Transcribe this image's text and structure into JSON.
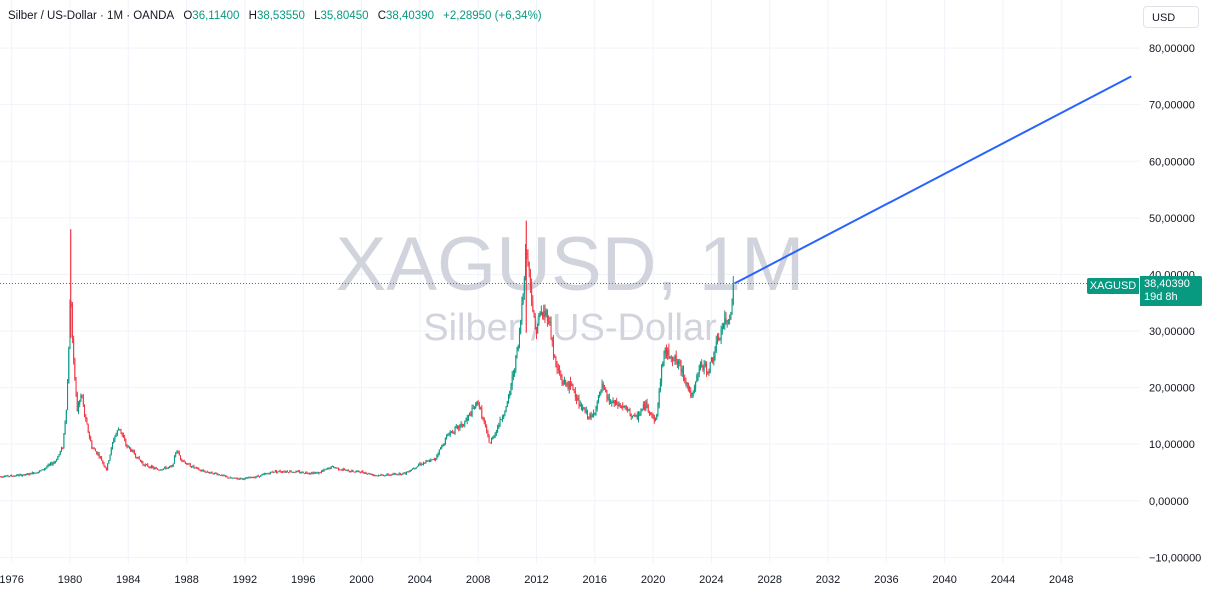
{
  "header": {
    "symbol": "Silber / US-Dollar · 1M · OANDA",
    "open_label": "O",
    "open": "36,11400",
    "high_label": "H",
    "high": "38,53550",
    "low_label": "L",
    "low": "35,80450",
    "close_label": "C",
    "close": "38,40390",
    "change": "+2,28950 (+6,34%)"
  },
  "currency_button": "USD",
  "watermark": {
    "ticker": "XAGUSD, 1M",
    "name": "Silber / US-Dollar"
  },
  "last_price": {
    "symbol": "XAGUSD",
    "price": "38,40390",
    "countdown": "19d 8h"
  },
  "colors": {
    "up": "#089981",
    "down": "#f23645",
    "trendline": "#2962ff",
    "grid": "#f0f3fa",
    "tag": "#089981"
  },
  "chart_data": {
    "type": "candlestick",
    "y_tick_labels": [
      "80,00000",
      "70,00000",
      "60,00000",
      "50,00000",
      "40,00000",
      "30,00000",
      "20,00000",
      "10,00000",
      "0,00000",
      "−10,00000"
    ],
    "y_ticks": [
      80,
      70,
      60,
      50,
      40,
      30,
      20,
      10,
      0,
      -10
    ],
    "ylim": [
      -11,
      88.5
    ],
    "x_tick_labels": [
      "1976",
      "1980",
      "1984",
      "1988",
      "1992",
      "1996",
      "2000",
      "2004",
      "2008",
      "2012",
      "2016",
      "2020",
      "2024",
      "2028",
      "2032",
      "2036",
      "2040",
      "2044",
      "2048"
    ],
    "x_ticks": [
      1976,
      1980,
      1984,
      1988,
      1992,
      1996,
      2000,
      2004,
      2008,
      2012,
      2016,
      2020,
      2024,
      2028,
      2032,
      2036,
      2040,
      2044,
      2048
    ],
    "xlim": [
      1975.2,
      2053.4
    ],
    "price_points": [
      [
        1975.0,
        4.3
      ],
      [
        1976.0,
        4.4
      ],
      [
        1977.0,
        4.6
      ],
      [
        1978.0,
        5.3
      ],
      [
        1979.0,
        7.0
      ],
      [
        1979.5,
        9.5
      ],
      [
        1979.8,
        18.0
      ],
      [
        1980.05,
        38.0
      ],
      [
        1980.2,
        26.0
      ],
      [
        1980.5,
        16.0
      ],
      [
        1980.8,
        19.0
      ],
      [
        1981.0,
        15.0
      ],
      [
        1981.5,
        9.5
      ],
      [
        1982.0,
        8.0
      ],
      [
        1982.5,
        5.5
      ],
      [
        1983.0,
        11.0
      ],
      [
        1983.4,
        13.0
      ],
      [
        1983.8,
        10.0
      ],
      [
        1984.5,
        8.0
      ],
      [
        1985.0,
        6.5
      ],
      [
        1986.0,
        5.5
      ],
      [
        1987.0,
        6.0
      ],
      [
        1987.3,
        9.0
      ],
      [
        1987.6,
        7.5
      ],
      [
        1988.0,
        6.5
      ],
      [
        1989.0,
        5.3
      ],
      [
        1990.0,
        4.8
      ],
      [
        1991.0,
        4.0
      ],
      [
        1992.0,
        3.9
      ],
      [
        1993.0,
        4.4
      ],
      [
        1994.0,
        5.2
      ],
      [
        1995.0,
        5.2
      ],
      [
        1996.0,
        5.0
      ],
      [
        1997.0,
        4.9
      ],
      [
        1998.0,
        6.0
      ],
      [
        1999.0,
        5.3
      ],
      [
        2000.0,
        5.1
      ],
      [
        2001.0,
        4.5
      ],
      [
        2002.0,
        4.6
      ],
      [
        2003.0,
        4.9
      ],
      [
        2004.0,
        6.5
      ],
      [
        2005.0,
        7.3
      ],
      [
        2006.0,
        12.0
      ],
      [
        2007.0,
        13.5
      ],
      [
        2008.0,
        17.5
      ],
      [
        2008.8,
        10.0
      ],
      [
        2009.5,
        14.0
      ],
      [
        2010.0,
        17.0
      ],
      [
        2010.8,
        28.0
      ],
      [
        2011.3,
        45.0
      ],
      [
        2011.6,
        38.0
      ],
      [
        2011.9,
        30.0
      ],
      [
        2012.3,
        33.0
      ],
      [
        2012.8,
        33.0
      ],
      [
        2013.3,
        24.0
      ],
      [
        2013.8,
        21.0
      ],
      [
        2014.5,
        20.0
      ],
      [
        2015.0,
        16.5
      ],
      [
        2015.8,
        14.5
      ],
      [
        2016.5,
        20.0
      ],
      [
        2017.0,
        17.5
      ],
      [
        2018.0,
        16.5
      ],
      [
        2018.8,
        14.5
      ],
      [
        2019.5,
        17.0
      ],
      [
        2020.2,
        14.0
      ],
      [
        2020.7,
        26.0
      ],
      [
        2021.2,
        26.0
      ],
      [
        2022.0,
        23.0
      ],
      [
        2022.7,
        18.0
      ],
      [
        2023.2,
        24.0
      ],
      [
        2023.8,
        23.0
      ],
      [
        2024.3,
        27.0
      ],
      [
        2024.8,
        31.0
      ],
      [
        2025.2,
        32.0
      ],
      [
        2025.5,
        37.0
      ],
      [
        2025.58,
        38.4
      ]
    ],
    "peak_wicks": [
      [
        1980.05,
        48.0
      ],
      [
        2011.3,
        49.5
      ]
    ],
    "trendline": {
      "from": [
        2025.58,
        38.4
      ],
      "to": [
        2052.8,
        75.0
      ]
    },
    "last_price_line": 38.4039
  }
}
